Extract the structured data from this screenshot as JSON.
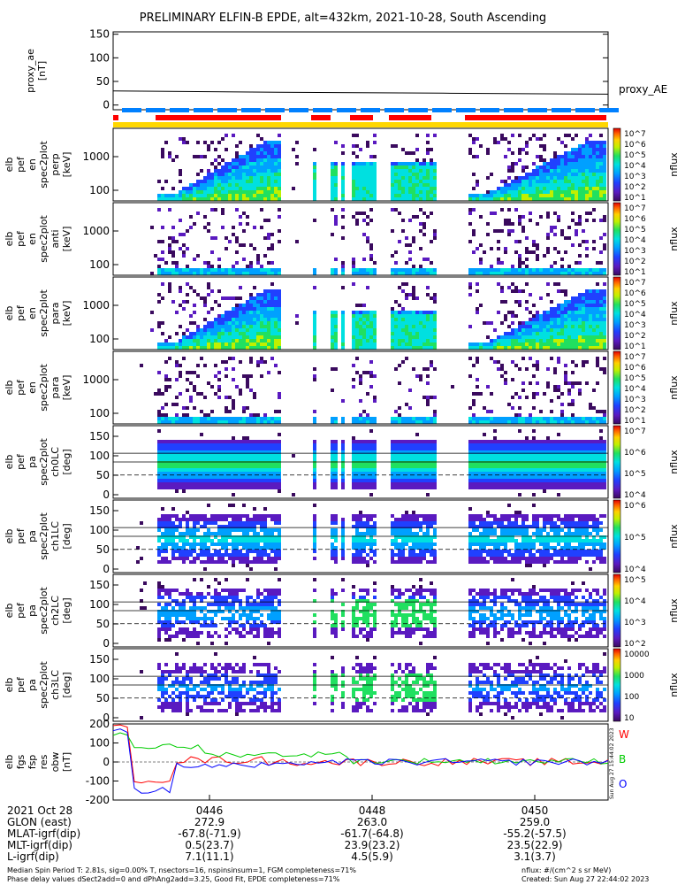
{
  "title": "PRELIMINARY ELFIN-B EPDE, alt=432km, 2021-10-28, South Ascending",
  "proxy_panel": {
    "ylabel_lines": [
      "proxy_ae",
      "[nT]"
    ],
    "ticks": [
      "150",
      "100",
      "50",
      "0"
    ],
    "ylim": [
      -10,
      155
    ],
    "legend": "proxy_AE"
  },
  "spec_panels": [
    {
      "ylabel_lines": [
        "elb",
        "pef",
        "en",
        "spec2plot",
        "perp",
        "[keV]"
      ],
      "ticks": [
        "1000",
        "100"
      ],
      "cb_ticks": [
        "10^7",
        "10^6",
        "10^5",
        "10^4",
        "10^3",
        "10^2",
        "10^1"
      ],
      "cb_label": "nflux",
      "kind": "energy",
      "pattern": "perp"
    },
    {
      "ylabel_lines": [
        "elb",
        "pef",
        "en",
        "spec2plot",
        "anti",
        "[keV]"
      ],
      "ticks": [
        "1000",
        "100"
      ],
      "cb_ticks": [
        "10^7",
        "10^6",
        "10^5",
        "10^4",
        "10^3",
        "10^2",
        "10^1"
      ],
      "cb_label": "nflux",
      "kind": "energy",
      "pattern": "anti"
    },
    {
      "ylabel_lines": [
        "elb",
        "pef",
        "en",
        "spec2plot",
        "para",
        "[keV]"
      ],
      "ticks": [
        "1000",
        "100"
      ],
      "cb_ticks": [
        "10^7",
        "10^6",
        "10^5",
        "10^4",
        "10^3",
        "10^2",
        "10^1"
      ],
      "cb_label": "nflux",
      "kind": "energy",
      "pattern": "perp"
    },
    {
      "ylabel_lines": [
        "elb",
        "pef",
        "en",
        "spec2plot",
        "para",
        "[keV]"
      ],
      "ticks": [
        "1000",
        "100"
      ],
      "cb_ticks": [
        "10^7",
        "10^6",
        "10^5",
        "10^4",
        "10^3",
        "10^2",
        "10^1"
      ],
      "cb_label": "nflux",
      "kind": "energy",
      "pattern": "anti"
    },
    {
      "ylabel_lines": [
        "elb",
        "pef",
        "pa",
        "spec2plot",
        "ch0LC",
        "[deg]"
      ],
      "ticks": [
        "150",
        "100",
        "50",
        "0"
      ],
      "cb_ticks": [
        "10^7",
        "10^6",
        "10^5",
        "10^4"
      ],
      "cb_label": "nflux",
      "kind": "pitch",
      "pattern": "ch0"
    },
    {
      "ylabel_lines": [
        "elb",
        "pef",
        "pa",
        "spec2plot",
        "ch1LC",
        "[deg]"
      ],
      "ticks": [
        "150",
        "100",
        "50",
        "0"
      ],
      "cb_ticks": [
        "10^6",
        "10^5",
        "10^4"
      ],
      "cb_label": "nflux",
      "kind": "pitch",
      "pattern": "ch1"
    },
    {
      "ylabel_lines": [
        "elb",
        "pef",
        "pa",
        "spec2plot",
        "ch2LC",
        "[deg]"
      ],
      "ticks": [
        "150",
        "100",
        "50",
        "0"
      ],
      "cb_ticks": [
        "10^5",
        "10^4",
        "10^3",
        "10^2"
      ],
      "cb_label": "nflux",
      "kind": "pitch",
      "pattern": "ch2"
    },
    {
      "ylabel_lines": [
        "elb",
        "pef",
        "pa",
        "spec2plot",
        "ch3LC",
        "[deg]"
      ],
      "ticks": [
        "150",
        "100",
        "50",
        "0"
      ],
      "cb_ticks": [
        "10000",
        "1000",
        "100",
        "10"
      ],
      "cb_label": "nflux",
      "kind": "pitch",
      "pattern": "ch3"
    }
  ],
  "mag_panel": {
    "ylabel_lines": [
      "elb",
      "fgs",
      "fsp",
      "res",
      "obw",
      "[nT]"
    ],
    "ticks": [
      "200",
      "100",
      "0",
      "-100",
      "-200"
    ],
    "ylim": [
      -200,
      200
    ],
    "legend": [
      {
        "label": "W",
        "color": "#ff0000"
      },
      {
        "label": "B",
        "color": "#00cc00"
      },
      {
        "label": "O",
        "color": "#0000ff"
      }
    ],
    "stamp": "Sun Aug 27 15:44:02 2023"
  },
  "xaxis": {
    "date": "2021 Oct 28",
    "ticks": [
      "0446",
      "0448",
      "0450"
    ],
    "rows": [
      {
        "label": "GLON (east)",
        "values": [
          "272.9",
          "263.0",
          "259.0"
        ]
      },
      {
        "label": "MLAT-igrf(dip)",
        "values": [
          "-67.8(-71.9)",
          "-61.7(-64.8)",
          "-55.2(-57.5)"
        ]
      },
      {
        "label": "MLT-igrf(dip)",
        "values": [
          "0.5(23.7)",
          "23.9(23.2)",
          "23.5(22.9)"
        ]
      },
      {
        "label": "L-igrf(dip)",
        "values": [
          "7.1(11.1)",
          "4.5(5.9)",
          "3.1(3.7)"
        ]
      }
    ]
  },
  "footer": {
    "left1": "Median Spin Period T: 2.81s, sig=0.00% T, nsectors=16, nspinsinsum=1, FGM completeness=71%",
    "left2": "Phase delay values dSect2add=0 and dPhAng2add=3.25, Good Fit, EPDE completeness=71%",
    "right1": "nflux: #/(cm^2 s sr MeV)",
    "right2": "Created: Sun Aug 27 22:44:02 2023"
  },
  "colors": {
    "red": "#ff0000",
    "blue": "#0080ff",
    "yellow": "#ffd700"
  },
  "chart_data": {
    "type": "heatmap",
    "title": "PRELIMINARY ELFIN-B EPDE, alt=432km, 2021-10-28, South Ascending",
    "x_time_ticks": [
      "0446",
      "0448",
      "0450"
    ],
    "proxy_ae": {
      "type": "line",
      "approx_values_nT": [
        30,
        27,
        25,
        23
      ],
      "ylim": [
        -10,
        155
      ]
    },
    "energy_range_keV": [
      60,
      7000
    ],
    "pitch_range_deg": [
      0,
      180
    ],
    "colorbar_range_nflux": [
      "10^1",
      "10^7"
    ],
    "mag_residuals": {
      "type": "line",
      "series": [
        "W",
        "B",
        "O"
      ],
      "ylim": [
        -200,
        200
      ]
    }
  }
}
